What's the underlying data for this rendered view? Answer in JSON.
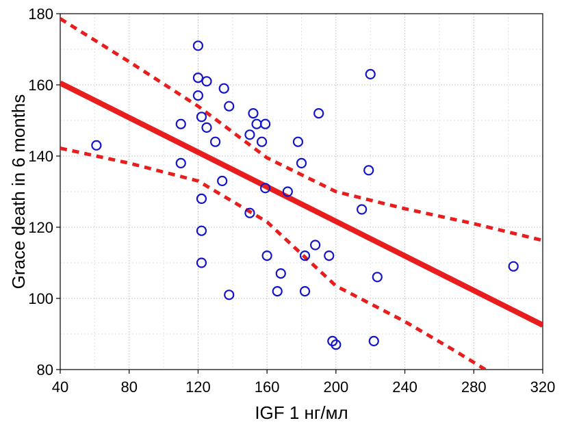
{
  "chart_data": {
    "type": "scatter",
    "title": "",
    "xlabel": "IGF 1 нг/мл",
    "ylabel": "Grace death in 6 months",
    "xlim": [
      40,
      320
    ],
    "ylim": [
      80,
      180
    ],
    "grid": true,
    "x_ticks": [
      40,
      80,
      120,
      160,
      200,
      240,
      280,
      320
    ],
    "y_ticks": [
      80,
      100,
      120,
      140,
      160,
      180
    ],
    "colors": {
      "points": "#1414c8",
      "fit": "#e81e1e",
      "grid": "#c8c8c8"
    },
    "series": [
      {
        "name": "observations",
        "points": [
          [
            61,
            143
          ],
          [
            110,
            149
          ],
          [
            110,
            138
          ],
          [
            120,
            171
          ],
          [
            120,
            162
          ],
          [
            120,
            157
          ],
          [
            122,
            151
          ],
          [
            122,
            128
          ],
          [
            122,
            119
          ],
          [
            122,
            110
          ],
          [
            125,
            161
          ],
          [
            125,
            148
          ],
          [
            130,
            144
          ],
          [
            134,
            133
          ],
          [
            135,
            159
          ],
          [
            138,
            154
          ],
          [
            138,
            101
          ],
          [
            150,
            146
          ],
          [
            150,
            124
          ],
          [
            152,
            152
          ],
          [
            154,
            149
          ],
          [
            157,
            144
          ],
          [
            159,
            149
          ],
          [
            159,
            131
          ],
          [
            160,
            112
          ],
          [
            166,
            102
          ],
          [
            168,
            107
          ],
          [
            172,
            130
          ],
          [
            178,
            144
          ],
          [
            180,
            138
          ],
          [
            182,
            112
          ],
          [
            182,
            102
          ],
          [
            188,
            115
          ],
          [
            190,
            152
          ],
          [
            196,
            112
          ],
          [
            198,
            88
          ],
          [
            200,
            87
          ],
          [
            215,
            125
          ],
          [
            219,
            136
          ],
          [
            220,
            163
          ],
          [
            222,
            88
          ],
          [
            224,
            106
          ],
          [
            303,
            109
          ]
        ]
      }
    ],
    "fit_line": {
      "name": "regression",
      "points": [
        [
          40,
          160.5
        ],
        [
          320,
          92.5
        ]
      ]
    },
    "confidence_upper": {
      "name": "upper 95% band",
      "points": [
        [
          40,
          178.6
        ],
        [
          80,
          166.5
        ],
        [
          120,
          154.0
        ],
        [
          160,
          139.5
        ],
        [
          200,
          130.0
        ],
        [
          240,
          125.2
        ],
        [
          280,
          121.0
        ],
        [
          320,
          116.3
        ]
      ]
    },
    "confidence_lower": {
      "name": "lower 95% band",
      "points": [
        [
          40,
          142.2
        ],
        [
          80,
          138.0
        ],
        [
          120,
          133.0
        ],
        [
          160,
          121.5
        ],
        [
          200,
          103.5
        ],
        [
          240,
          93.5
        ],
        [
          270,
          85.0
        ],
        [
          290,
          79.0
        ]
      ]
    }
  }
}
